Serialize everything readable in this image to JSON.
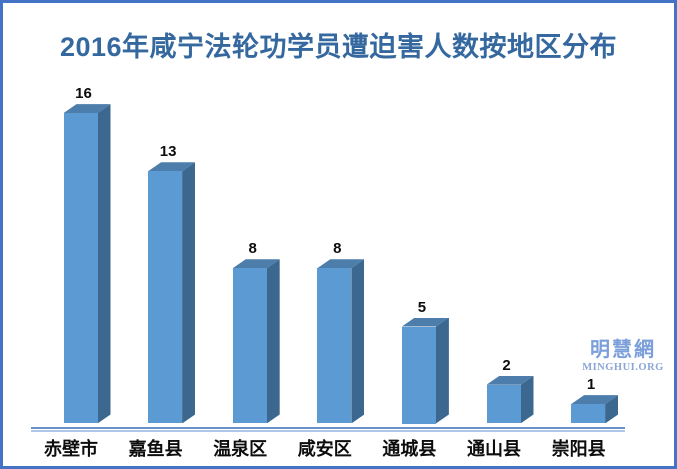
{
  "title": "2016年咸宁法轮功学员遭迫害人数按地区分布",
  "watermark": {
    "name": "明慧網",
    "site": "MINGHUI.ORG"
  },
  "chart_data": {
    "type": "bar",
    "style": "3d-column",
    "title": "2016年咸宁法轮功学员遭迫害人数按地区分布",
    "categories": [
      "赤壁市",
      "嘉鱼县",
      "温泉区",
      "咸安区",
      "通城县",
      "通山县",
      "崇阳县"
    ],
    "values": [
      16,
      13,
      8,
      8,
      5,
      2,
      1
    ],
    "data_labels": [
      16,
      13,
      8,
      8,
      5,
      2,
      1
    ],
    "xlabel": "",
    "ylabel": "",
    "ylim": [
      0,
      16
    ],
    "grid": false,
    "legend": null,
    "colors": {
      "bar_front": "#5B9AD2",
      "bar_top": "#4C7DAB",
      "bar_side": "#3C6890",
      "title_text": "#34689E",
      "axis_line": "#6790C8",
      "axis_line_light": "#AEC6E8",
      "frame_border": "#4472C4",
      "label_text": "#0d0d0d",
      "watermark": "#7B9FDA",
      "background": "#FFFFFF"
    }
  }
}
